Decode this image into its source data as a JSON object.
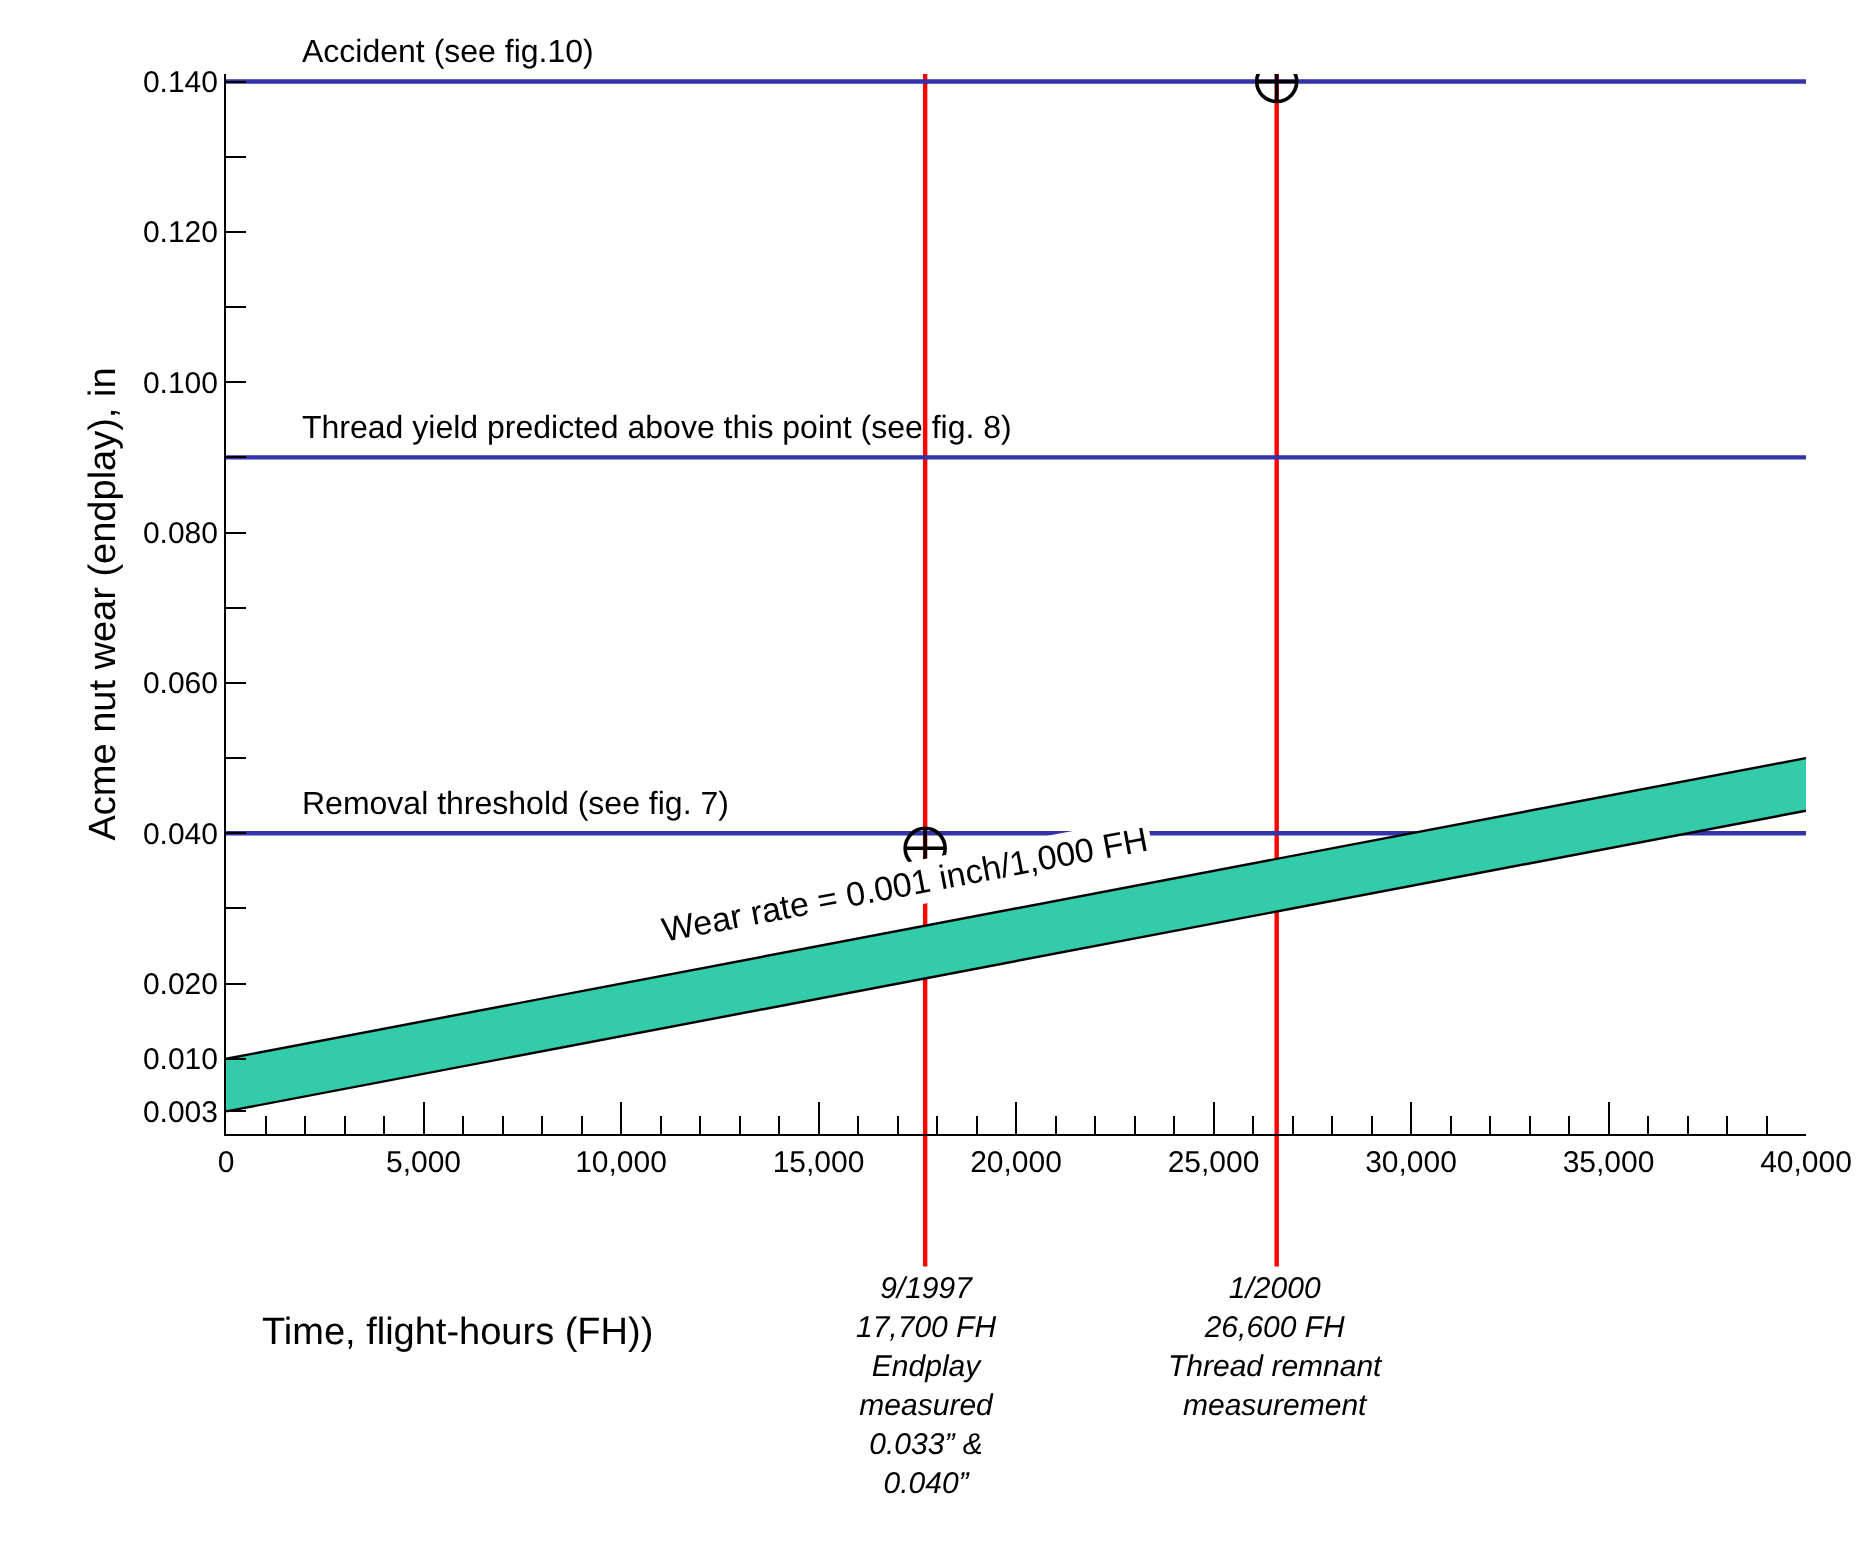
{
  "chart_data": {
    "type": "line",
    "xlabel": "Time, flight-hours (FH))",
    "ylabel": "Acme nut wear (endplay), in",
    "xlim": [
      0,
      40000
    ],
    "xticks": [
      {
        "value": 0,
        "label": "0"
      },
      {
        "value": 1000,
        "label": null
      },
      {
        "value": 2000,
        "label": null
      },
      {
        "value": 3000,
        "label": null
      },
      {
        "value": 4000,
        "label": null
      },
      {
        "value": 5000,
        "label": "5,000"
      },
      {
        "value": 6000,
        "label": null
      },
      {
        "value": 7000,
        "label": null
      },
      {
        "value": 8000,
        "label": null
      },
      {
        "value": 9000,
        "label": null
      },
      {
        "value": 10000,
        "label": "10,000"
      },
      {
        "value": 11000,
        "label": null
      },
      {
        "value": 12000,
        "label": null
      },
      {
        "value": 13000,
        "label": null
      },
      {
        "value": 14000,
        "label": null
      },
      {
        "value": 15000,
        "label": "15,000"
      },
      {
        "value": 16000,
        "label": null
      },
      {
        "value": 17000,
        "label": null
      },
      {
        "value": 18000,
        "label": null
      },
      {
        "value": 19000,
        "label": null
      },
      {
        "value": 20000,
        "label": "20,000"
      },
      {
        "value": 21000,
        "label": null
      },
      {
        "value": 22000,
        "label": null
      },
      {
        "value": 23000,
        "label": null
      },
      {
        "value": 24000,
        "label": null
      },
      {
        "value": 25000,
        "label": "25,000"
      },
      {
        "value": 26000,
        "label": null
      },
      {
        "value": 27000,
        "label": null
      },
      {
        "value": 28000,
        "label": null
      },
      {
        "value": 29000,
        "label": null
      },
      {
        "value": 30000,
        "label": "30,000"
      },
      {
        "value": 31000,
        "label": null
      },
      {
        "value": 32000,
        "label": null
      },
      {
        "value": 33000,
        "label": null
      },
      {
        "value": 34000,
        "label": null
      },
      {
        "value": 35000,
        "label": "35,000"
      },
      {
        "value": 36000,
        "label": null
      },
      {
        "value": 37000,
        "label": null
      },
      {
        "value": 38000,
        "label": null
      },
      {
        "value": 39000,
        "label": null
      },
      {
        "value": 40000,
        "label": "40,000"
      }
    ],
    "ylim": [
      0,
      0.141
    ],
    "yticks": [
      0.003,
      {
        "value": 0.01,
        "label": "0.010"
      },
      {
        "value": 0.02,
        "label": "0.020"
      },
      {
        "value": 0.03,
        "label": null
      },
      {
        "value": 0.04,
        "label": "0.040"
      },
      {
        "value": 0.05,
        "label": null
      },
      {
        "value": 0.06,
        "label": "0.060"
      },
      {
        "value": 0.07,
        "label": null
      },
      {
        "value": 0.08,
        "label": "0.080"
      },
      {
        "value": 0.09,
        "label": null
      },
      {
        "value": 0.1,
        "label": "0.100"
      },
      {
        "value": 0.11,
        "label": null
      },
      {
        "value": 0.12,
        "label": "0.120"
      },
      {
        "value": 0.13,
        "label": null
      },
      {
        "value": 0.14,
        "label": "0.140"
      }
    ],
    "series": [
      {
        "color": "#000000",
        "x": [
          0,
          40000
        ],
        "values": [
          0.003,
          0.043
        ]
      },
      {
        "type": "area",
        "color": "#33ccaa",
        "x": [
          0,
          40000
        ],
        "values": [
          0.01,
          0.05
        ]
      },
      {
        "type": "scatter",
        "color": "#000000",
        "marker": "cross",
        "x": [
          17700,
          26600
        ],
        "values": [
          0.038,
          0.14
        ]
      }
    ],
    "ref_lines": [
      {
        "axis": "y",
        "value": 0.14,
        "label": "Accident (see fig.10)",
        "color": "#3333aa"
      },
      {
        "axis": "y",
        "value": 0.09,
        "label": "Thread yield predicted above this point (see fig. 8)",
        "color": "#3333aa"
      },
      {
        "axis": "y",
        "value": 0.04,
        "label": "Removal threshold (see fig. 7)",
        "color": "#3333aa"
      },
      {
        "axis": "x",
        "value": 17700,
        "label": "9/1997\n17,700 FH\nEndplay\nmeasured\n0.033” &\n0.040”",
        "color": "#ff0000"
      },
      {
        "axis": "x",
        "value": 26600,
        "label": "1/2000\n26,600 FH\nThread remnant\nmeasurement",
        "color": "#ff0000"
      }
    ],
    "annotations": [
      "Wear rate = 0.001 inch/1,000 FH"
    ],
    "grid": false,
    "legend": false
  }
}
